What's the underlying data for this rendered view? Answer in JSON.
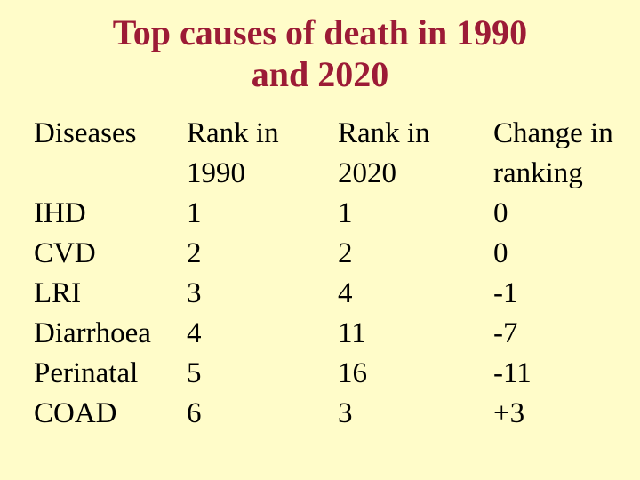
{
  "slide": {
    "background_color": "#FFFCC9",
    "title_color": "#9C1B36",
    "text_color": "#000000",
    "title": {
      "line1": "Top causes of death in 1990",
      "line2": "and 2020"
    }
  },
  "table": {
    "columns": [
      {
        "id": "diseases",
        "header_line1": "Diseases",
        "header_line2": "",
        "cells": [
          "IHD",
          "CVD",
          "LRI",
          "Diarrhoea",
          "Perinatal",
          "COAD"
        ]
      },
      {
        "id": "rank-1990",
        "header_line1": "Rank in",
        "header_line2": "1990",
        "cells": [
          "1",
          "2",
          "3",
          "4",
          "5",
          "6"
        ]
      },
      {
        "id": "rank-2020",
        "header_line1": "Rank in",
        "header_line2": "2020",
        "cells": [
          "1",
          "2",
          "4",
          "11",
          "16",
          "3"
        ]
      },
      {
        "id": "change-in-ranking",
        "header_line1": "Change in",
        "header_line2": "ranking",
        "cells": [
          "0",
          "0",
          "-1",
          "-7",
          "-11",
          "+3"
        ]
      }
    ]
  },
  "chart_data": {
    "type": "table",
    "title": "Top causes of death in 1990 and 2020",
    "columns": [
      "Diseases",
      "Rank in 1990",
      "Rank in 2020",
      "Change in ranking"
    ],
    "rows": [
      [
        "IHD",
        1,
        1,
        0
      ],
      [
        "CVD",
        2,
        2,
        0
      ],
      [
        "LRI",
        3,
        4,
        -1
      ],
      [
        "Diarrhoea",
        4,
        11,
        -7
      ],
      [
        "Perinatal",
        5,
        16,
        -11
      ],
      [
        "COAD",
        6,
        3,
        "+3"
      ]
    ]
  }
}
